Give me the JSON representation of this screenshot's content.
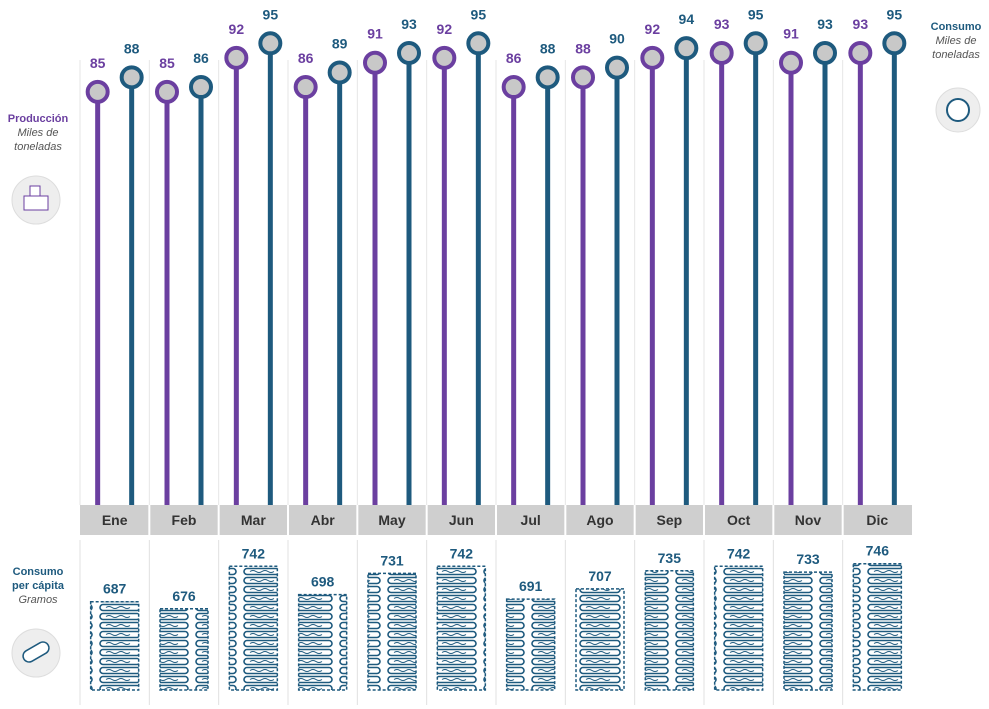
{
  "chart_data": {
    "type": "lollipop",
    "categories": [
      "Ene",
      "Feb",
      "Mar",
      "Abr",
      "May",
      "Jun",
      "Jul",
      "Ago",
      "Sep",
      "Oct",
      "Nov",
      "Dic"
    ],
    "series": [
      {
        "name": "Producción",
        "unit": "Miles de toneladas",
        "color": "#6b3fa0",
        "values": [
          85,
          85,
          92,
          86,
          91,
          92,
          86,
          88,
          92,
          93,
          91,
          93
        ]
      },
      {
        "name": "Consumo",
        "unit": "Miles de toneladas",
        "color": "#1e5a7e",
        "values": [
          88,
          86,
          95,
          89,
          93,
          95,
          88,
          90,
          94,
          95,
          93,
          95
        ]
      },
      {
        "name": "Consumo per cápita",
        "unit": "Gramos",
        "color": "#1e5a7e",
        "axis": "y2",
        "values": [
          687,
          676,
          742,
          698,
          731,
          742,
          691,
          707,
          735,
          742,
          733,
          746
        ]
      }
    ],
    "ylim": [
      0,
      100
    ],
    "y2lim": [
      550,
      775
    ]
  }
}
